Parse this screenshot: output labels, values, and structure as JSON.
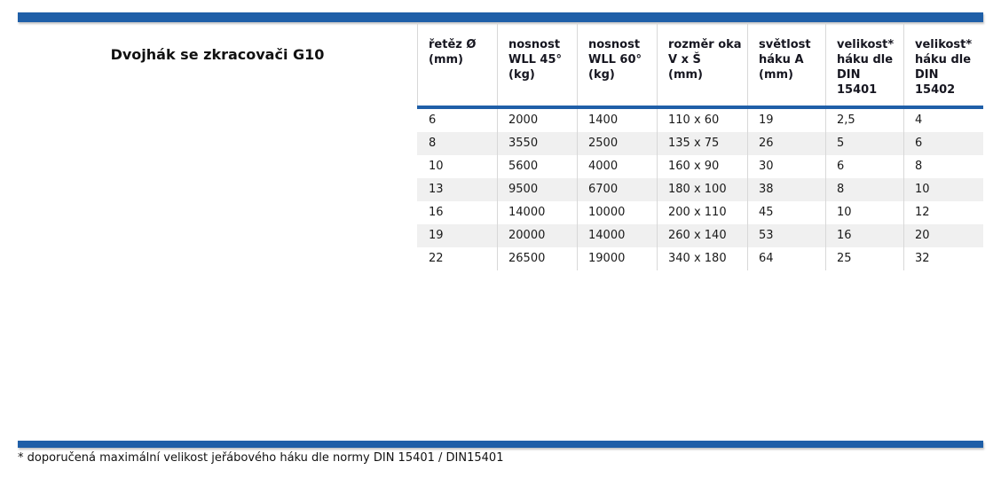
{
  "page": {
    "title": "Dvojhák se zkracovači G10",
    "footnote": "* doporučená maximální velikost jeřábového háku dle normy DIN 15401 / DIN15401"
  },
  "colors": {
    "accent_blue": "#1f5fa8",
    "row_alt_background": "#f0f0f0",
    "cell_separator": "#d8d8d8",
    "text": "#1a1a1a"
  },
  "table": {
    "columns": [
      {
        "lines": [
          "řetěz Ø",
          "(mm)"
        ]
      },
      {
        "lines": [
          "nosnost",
          "WLL 45°",
          "(kg)"
        ]
      },
      {
        "lines": [
          "nosnost",
          "WLL 60°",
          "(kg)"
        ]
      },
      {
        "lines": [
          "rozměr oka",
          "V x Š",
          "(mm)"
        ]
      },
      {
        "lines": [
          "světlost",
          "háku A",
          "(mm)"
        ]
      },
      {
        "lines": [
          "velikost*",
          "háku dle",
          "DIN 15401"
        ]
      },
      {
        "lines": [
          "velikost*",
          "háku dle",
          "DIN 15402"
        ]
      }
    ],
    "rows": [
      [
        "6",
        "2000",
        "1400",
        "110 x 60",
        "19",
        "2,5",
        "4"
      ],
      [
        "8",
        "3550",
        "2500",
        "135 x 75",
        "26",
        "5",
        "6"
      ],
      [
        "10",
        "5600",
        "4000",
        "160 x 90",
        "30",
        "6",
        "8"
      ],
      [
        "13",
        "9500",
        "6700",
        "180 x 100",
        "38",
        "8",
        "10"
      ],
      [
        "16",
        "14000",
        "10000",
        "200 x 110",
        "45",
        "10",
        "12"
      ],
      [
        "19",
        "20000",
        "14000",
        "260 x 140",
        "53",
        "16",
        "20"
      ],
      [
        "22",
        "26500",
        "19000",
        "340 x 180",
        "64",
        "25",
        "32"
      ]
    ]
  }
}
